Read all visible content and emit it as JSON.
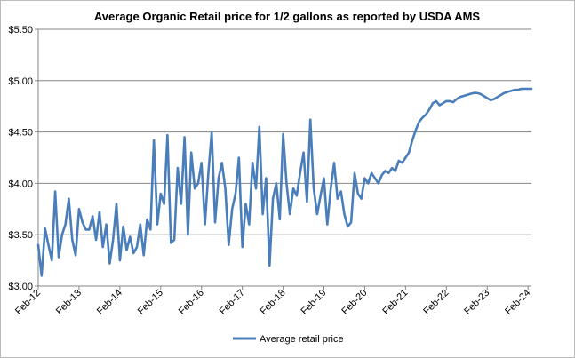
{
  "chart_data": {
    "type": "line",
    "title": "Average Organic Retail price for 1/2 gallons as reported by USDA AMS",
    "xlabel": "",
    "ylabel": "",
    "x_tick_labels": [
      "Feb-12",
      "Feb-13",
      "Feb-14",
      "Feb-15",
      "Feb-16",
      "Feb-17",
      "Feb-18",
      "Feb-19",
      "Feb-20",
      "Feb-21",
      "Feb-22",
      "Feb-23",
      "Feb-24"
    ],
    "y_tick_labels": [
      "$3.00",
      "$3.50",
      "$4.00",
      "$4.50",
      "$5.00",
      "$5.50"
    ],
    "ylim": [
      3.0,
      5.5
    ],
    "xlim_months_from_feb_2012": [
      0,
      145
    ],
    "grid": "horizontal",
    "legend_position": "bottom",
    "series_color": "#4a7ebb",
    "series": [
      {
        "name": "Average retail price",
        "x_months_from_feb_2012": [
          0,
          1,
          2,
          3,
          4,
          5,
          6,
          7,
          8,
          9,
          10,
          11,
          12,
          13,
          14,
          15,
          16,
          17,
          18,
          19,
          20,
          21,
          22,
          23,
          24,
          25,
          26,
          27,
          28,
          29,
          30,
          31,
          32,
          33,
          34,
          35,
          36,
          37,
          38,
          39,
          40,
          41,
          42,
          43,
          44,
          45,
          46,
          47,
          48,
          49,
          50,
          51,
          52,
          53,
          54,
          55,
          56,
          57,
          58,
          59,
          60,
          61,
          62,
          63,
          64,
          65,
          66,
          67,
          68,
          69,
          70,
          71,
          72,
          73,
          74,
          75,
          76,
          77,
          78,
          79,
          80,
          81,
          82,
          83,
          84,
          85,
          86,
          87,
          88,
          89,
          90,
          91,
          92,
          93,
          94,
          95,
          96,
          97,
          98,
          99,
          100,
          101,
          102,
          103,
          104,
          105,
          106,
          107,
          108,
          109,
          110,
          111,
          112,
          113,
          114,
          115,
          116,
          117,
          118,
          119,
          120,
          121,
          122,
          123,
          124,
          125,
          126,
          127,
          128,
          129,
          130,
          131,
          132,
          133,
          134,
          135,
          136,
          137,
          138,
          139,
          140,
          141,
          142,
          143,
          144,
          145
        ],
        "values": [
          3.4,
          3.1,
          3.56,
          3.4,
          3.25,
          3.92,
          3.28,
          3.5,
          3.6,
          3.85,
          3.45,
          3.3,
          3.75,
          3.62,
          3.55,
          3.55,
          3.68,
          3.45,
          3.72,
          3.38,
          3.6,
          3.22,
          3.45,
          3.8,
          3.25,
          3.58,
          3.35,
          3.48,
          3.32,
          3.38,
          3.6,
          3.3,
          3.65,
          3.55,
          4.42,
          3.6,
          3.9,
          3.8,
          4.47,
          3.42,
          3.45,
          4.15,
          3.8,
          4.45,
          3.5,
          4.3,
          3.95,
          4.0,
          4.2,
          3.6,
          4.1,
          4.5,
          3.62,
          4.05,
          4.2,
          3.95,
          3.4,
          3.75,
          3.9,
          4.25,
          3.38,
          3.8,
          3.6,
          4.2,
          3.95,
          4.55,
          3.7,
          4.05,
          3.2,
          3.85,
          4.0,
          3.65,
          4.48,
          4.0,
          3.7,
          3.95,
          3.88,
          4.1,
          4.3,
          3.82,
          4.62,
          3.95,
          3.7,
          3.88,
          4.05,
          3.6,
          3.95,
          4.2,
          3.85,
          3.92,
          3.7,
          3.58,
          3.62,
          4.1,
          3.9,
          3.85,
          4.05,
          4.0,
          4.1,
          4.05,
          4.0,
          4.08,
          4.12,
          4.1,
          4.15,
          4.12,
          4.22,
          4.2,
          4.25,
          4.3,
          4.42,
          4.52,
          4.6,
          4.64,
          4.67,
          4.72,
          4.78,
          4.8,
          4.76,
          4.78,
          4.8,
          4.8,
          4.79,
          4.82,
          4.84,
          4.85,
          4.86,
          4.87,
          4.88,
          4.88,
          4.87,
          4.85,
          4.83,
          4.81,
          4.82,
          4.84,
          4.86,
          4.88,
          4.89,
          4.9,
          4.91,
          4.91,
          4.92,
          4.92,
          4.92,
          4.92
        ]
      }
    ]
  }
}
